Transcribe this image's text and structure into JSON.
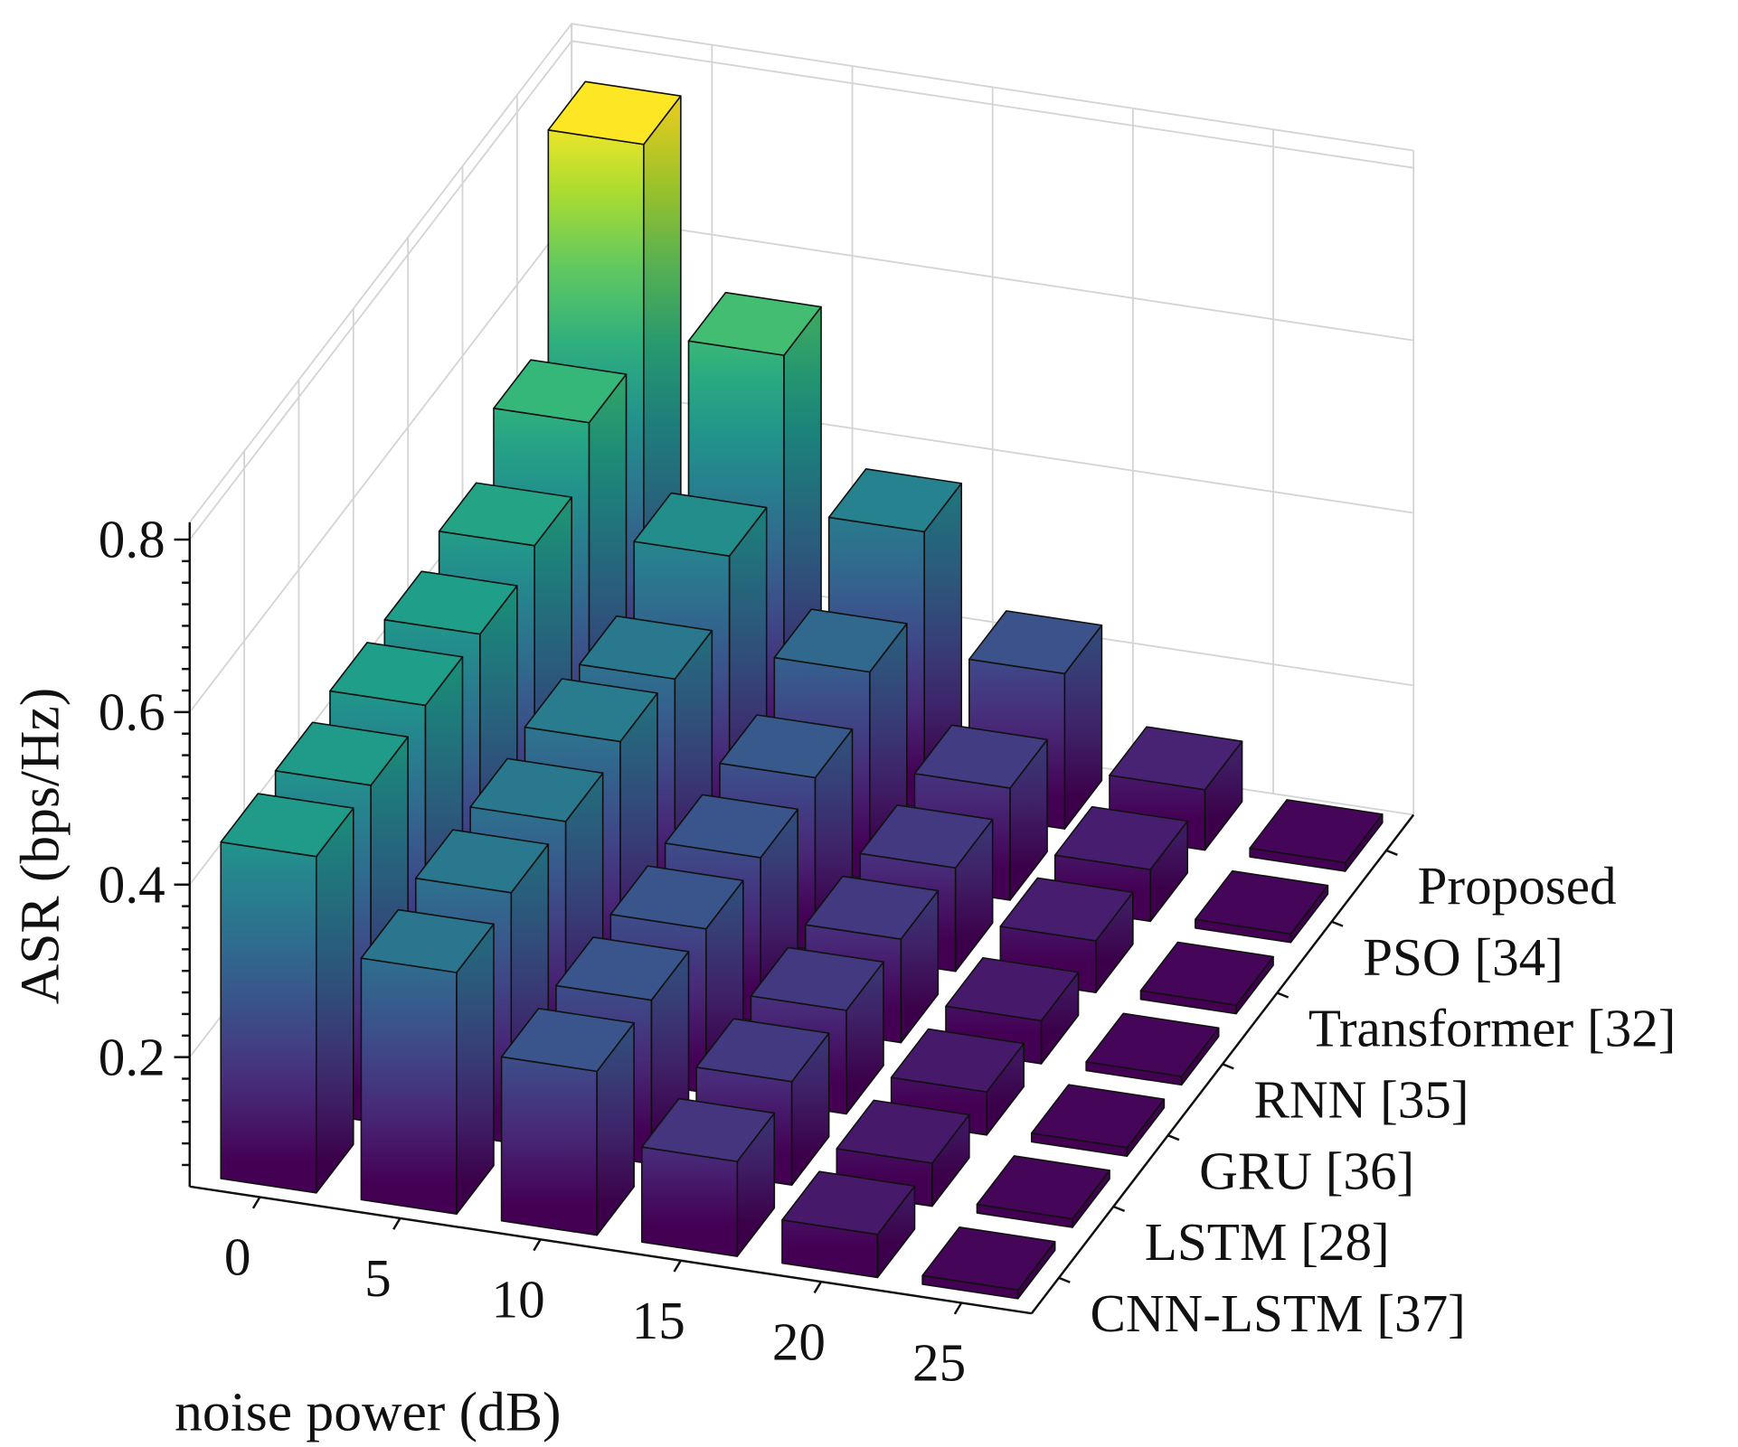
{
  "chart_data": {
    "type": "bar3d",
    "title": "",
    "xlabel": "noise power (dB)",
    "zlabel": "ASR (bps/Hz)",
    "x": [
      "0",
      "5",
      "10",
      "15",
      "20",
      "25"
    ],
    "z_ticks": [
      "0.2",
      "0.4",
      "0.6",
      "0.8"
    ],
    "z_tick_values": [
      0.2,
      0.4,
      0.6,
      0.8
    ],
    "zlim": [
      0.05,
      0.82
    ],
    "grid": true,
    "colormap": "viridis",
    "series": [
      {
        "name": "CNN-LSTM [37]",
        "values": [
          0.44,
          0.33,
          0.24,
          0.16,
          0.1,
          0.06
        ]
      },
      {
        "name": "LSTM [28]",
        "values": [
          0.44,
          0.34,
          0.24,
          0.17,
          0.1,
          0.06
        ]
      },
      {
        "name": "GRU [36]",
        "values": [
          0.45,
          0.34,
          0.24,
          0.17,
          0.1,
          0.06
        ]
      },
      {
        "name": "RNN [35]",
        "values": [
          0.45,
          0.35,
          0.24,
          0.17,
          0.1,
          0.06
        ]
      },
      {
        "name": "Transformer [32]",
        "values": [
          0.47,
          0.34,
          0.25,
          0.17,
          0.11,
          0.06
        ]
      },
      {
        "name": "PSO [34]",
        "values": [
          0.53,
          0.4,
          0.29,
          0.18,
          0.11,
          0.06
        ]
      },
      {
        "name": "Proposed",
        "values": [
          0.77,
          0.55,
          0.37,
          0.23,
          0.12,
          0.06
        ]
      }
    ]
  }
}
